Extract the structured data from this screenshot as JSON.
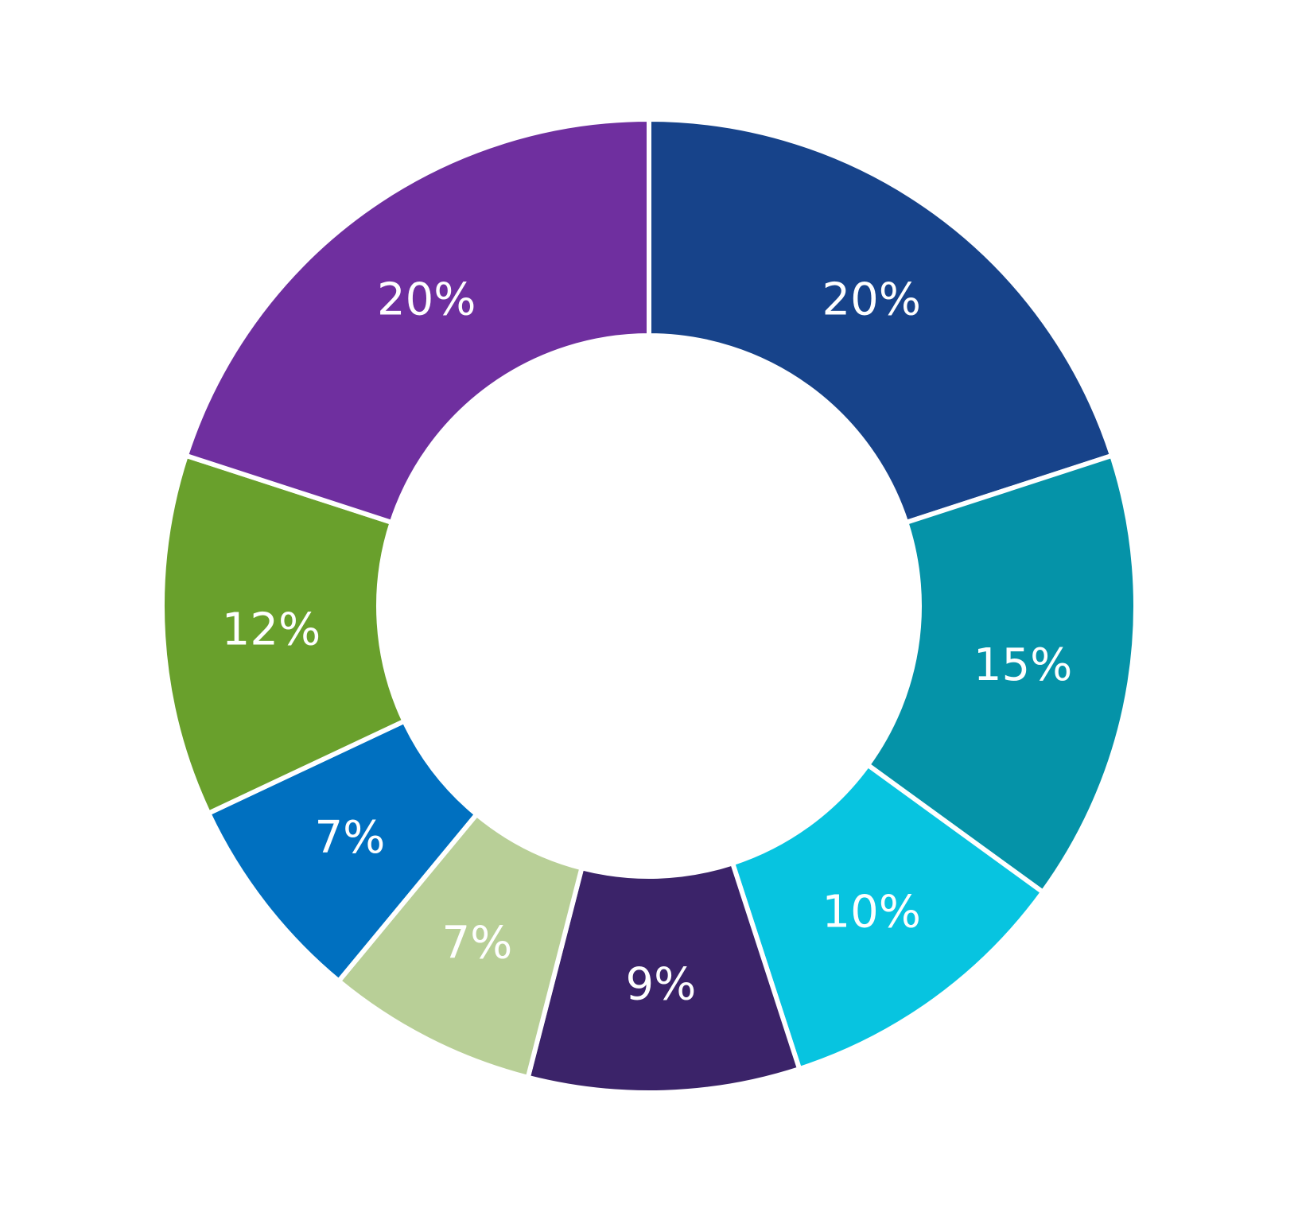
{
  "chart_data": {
    "type": "pie",
    "donut": true,
    "categories": [
      "",
      "",
      "",
      "",
      "",
      "",
      "",
      ""
    ],
    "values": [
      20,
      15,
      10,
      9,
      7,
      7,
      12,
      20
    ],
    "labels": [
      "20%",
      "15%",
      "10%",
      "9%",
      "7%",
      "7%",
      "12%",
      "20%"
    ],
    "colors": [
      "#17438A",
      "#0593A8",
      "#07C4E0",
      "#3B2369",
      "#B8CF97",
      "#0070C0",
      "#69A02C",
      "#6F2F9F"
    ],
    "title": "",
    "legend": "none"
  }
}
